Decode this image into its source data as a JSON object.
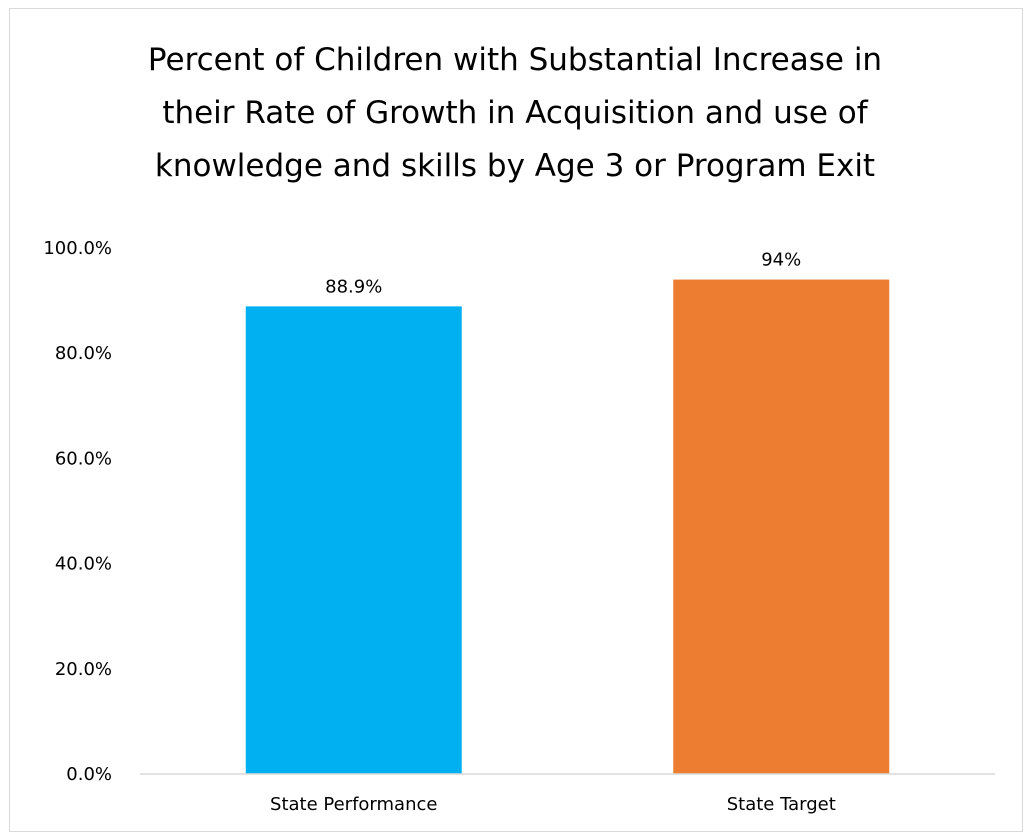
{
  "title_lines": [
    "Percent of Children with Substantial Increase in",
    "their Rate of Growth in Acquisition and use of",
    "knowledge and skills by Age 3 or Program Exit"
  ],
  "chart_data": {
    "type": "bar",
    "title": "Percent of Children with Substantial Increase in their Rate of Growth in Acquisition and use of knowledge and skills by Age 3 or Program Exit",
    "categories": [
      "State Performance",
      "State Target"
    ],
    "values": [
      88.9,
      94
    ],
    "data_labels": [
      "88.9%",
      "94%"
    ],
    "colors": [
      "#00b0f0",
      "#ed7d31"
    ],
    "xlabel": "",
    "ylabel": "",
    "ylim": [
      0,
      100
    ],
    "yticks": [
      0,
      20,
      40,
      60,
      80,
      100
    ],
    "ytick_labels": [
      "0.0%",
      "20.0%",
      "40.0%",
      "60.0%",
      "80.0%",
      "100.0%"
    ],
    "grid": false,
    "legend": "none"
  }
}
